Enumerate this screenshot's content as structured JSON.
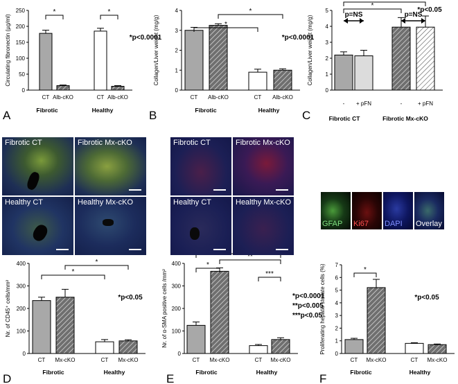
{
  "colors": {
    "gray": "#a8a8a8",
    "hatch_bg": "#6f6f6f",
    "light": "#dcdcdc",
    "white": "#ffffff",
    "black": "#000000"
  },
  "panels": {
    "A": "A",
    "B": "B",
    "C": "C",
    "D": "D",
    "E": "E",
    "F": "F"
  },
  "chart_data": [
    {
      "id": "A",
      "type": "bar",
      "ylabel": "Circulating fibronectin (µg/ml)",
      "ylim": [
        0,
        250
      ],
      "yticks": [
        0,
        50,
        100,
        150,
        200,
        250
      ],
      "categories": [
        "CT",
        "Alb-cKO",
        "CT",
        "Alb-cKO"
      ],
      "groups": [
        "Fibrotic",
        "Healthy"
      ],
      "values": [
        178,
        14,
        185,
        12
      ],
      "errors": [
        10,
        2,
        9,
        2
      ],
      "styles": [
        "gray",
        "hatch",
        "white",
        "hatch"
      ],
      "significance": [
        "*",
        "*"
      ],
      "annotation": "*p<0.0001"
    },
    {
      "id": "B",
      "type": "bar",
      "ylabel": "Collagen/Liver weight (mg/g)",
      "ylim": [
        0,
        4
      ],
      "yticks": [
        0,
        1,
        2,
        3,
        4
      ],
      "categories": [
        "CT",
        "Alb-cKO",
        "CT",
        "Alb-cKO"
      ],
      "groups": [
        "Fibrotic",
        "Healthy"
      ],
      "values": [
        3.0,
        3.25,
        0.9,
        1.0
      ],
      "errors": [
        0.15,
        0.08,
        0.15,
        0.07
      ],
      "styles": [
        "gray",
        "hatch",
        "white",
        "hatch"
      ],
      "significance": [
        "*",
        "*"
      ],
      "annotation": "*p<0.0001"
    },
    {
      "id": "C",
      "type": "bar",
      "ylabel": "Collagen/Liver weight (mg/g)",
      "ylim": [
        0,
        5
      ],
      "yticks": [
        0,
        1,
        2,
        3,
        4,
        5
      ],
      "categories": [
        "-",
        "+ pFN",
        "-",
        "+ pFN"
      ],
      "groups": [
        "Fibrotic CT",
        "Fibrotic Mx-cKO"
      ],
      "values": [
        2.2,
        2.15,
        3.95,
        3.95
      ],
      "errors": [
        0.2,
        0.35,
        0.6,
        0.7
      ],
      "styles": [
        "gray",
        "light",
        "hatch",
        "hatch-light"
      ],
      "significance": [
        "p=NS",
        "p=NS",
        "*",
        "*"
      ],
      "annotation": "*p<0.05"
    },
    {
      "id": "D",
      "type": "bar",
      "ylabel": "Nr. of CD45⁺ cells/mm²",
      "ylim": [
        0,
        400
      ],
      "yticks": [
        0,
        100,
        200,
        300,
        400
      ],
      "categories": [
        "CT",
        "Mx-cKO",
        "CT",
        "Mx-cKO"
      ],
      "groups": [
        "Fibrotic",
        "Healthy"
      ],
      "values": [
        235,
        250,
        52,
        56
      ],
      "errors": [
        15,
        35,
        10,
        5
      ],
      "styles": [
        "gray",
        "hatch",
        "white",
        "hatch"
      ],
      "significance": [
        "*",
        "*"
      ],
      "annotation": "*p<0.05"
    },
    {
      "id": "E",
      "type": "bar",
      "ylabel": "Nr. of α-SMA positive cells /mm²",
      "ylim": [
        0,
        400
      ],
      "yticks": [
        0,
        100,
        200,
        300,
        400
      ],
      "categories": [
        "CT",
        "Mx-cKO",
        "CT",
        "Mx-cKO"
      ],
      "groups": [
        "Fibrotic",
        "Healthy"
      ],
      "values": [
        125,
        365,
        35,
        62
      ],
      "errors": [
        15,
        15,
        5,
        8
      ],
      "styles": [
        "gray",
        "hatch",
        "white",
        "hatch"
      ],
      "significance": [
        "*",
        "**",
        "*",
        "***"
      ],
      "annotation_lines": [
        "*p<0.0001",
        "**p<0.005",
        "***p<0.05"
      ]
    },
    {
      "id": "F",
      "type": "bar",
      "ylabel": "Proliferating hepatic stellate cells (%)",
      "ylim": [
        0,
        7
      ],
      "yticks": [
        0,
        1,
        2,
        3,
        4,
        5,
        6,
        7
      ],
      "categories": [
        "CT",
        "Mx-cKO",
        "CT",
        "Mx-cKO"
      ],
      "groups": [
        "Fibrotic",
        "Healthy"
      ],
      "values": [
        1.1,
        5.2,
        0.8,
        0.7
      ],
      "errors": [
        0.1,
        0.65,
        0.05,
        0.05
      ],
      "styles": [
        "gray",
        "hatch",
        "white",
        "hatch"
      ],
      "significance": [
        "*"
      ],
      "annotation": "*p<0.05"
    }
  ],
  "micrographs": {
    "D": [
      "Fibrotic CT",
      "Fibrotic Mx-cKO",
      "Healthy CT",
      "Healthy Mx-cKO"
    ],
    "E": [
      "Fibrotic CT",
      "Fibrotic Mx-cKO",
      "Healthy CT",
      "Healthy Mx-cKO"
    ],
    "F": [
      "GFAP",
      "Ki67",
      "DAPI",
      "Overlay"
    ]
  }
}
